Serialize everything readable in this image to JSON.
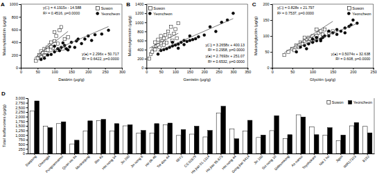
{
  "chart_data": [
    {
      "type": "scatter",
      "title": "A",
      "x_label": "Daidzin (μg/g)",
      "y_label": "Malonyldaidzin (μg/g)",
      "xlim": [
        0,
        300
      ],
      "xticks": [
        0,
        50,
        100,
        150,
        200,
        250,
        300
      ],
      "ylim": [
        0,
        1000
      ],
      "yticks": [
        0,
        200,
        400,
        600,
        800,
        1000
      ],
      "legend": "top-right",
      "series": [
        {
          "name": "Suwon",
          "color": "#ffffff",
          "marker": "square",
          "x": [
            45,
            50,
            55,
            60,
            65,
            70,
            75,
            80,
            85,
            90,
            95,
            100,
            105,
            110,
            115,
            120,
            125,
            130,
            80,
            70,
            60,
            90,
            100,
            110,
            140
          ],
          "values": [
            110,
            150,
            200,
            260,
            230,
            300,
            280,
            320,
            350,
            400,
            310,
            420,
            500,
            380,
            590,
            640,
            300,
            450,
            280,
            200,
            180,
            330,
            560,
            280,
            480
          ]
        },
        {
          "name": "Yeoncheon",
          "color": "#000000",
          "marker": "circle",
          "x": [
            60,
            70,
            80,
            90,
            100,
            110,
            120,
            130,
            140,
            150,
            160,
            170,
            180,
            190,
            200,
            210,
            220,
            240,
            260,
            100,
            115,
            125,
            145,
            135,
            165
          ],
          "values": [
            130,
            150,
            200,
            210,
            250,
            300,
            320,
            350,
            280,
            400,
            320,
            450,
            380,
            450,
            500,
            430,
            520,
            530,
            590,
            340,
            270,
            390,
            330,
            300,
            420
          ]
        },
        {
          "type": "line",
          "color": "#555555",
          "x": [
            40,
            140
          ],
          "values": [
            153,
            572
          ]
        },
        {
          "type": "line",
          "color": "#555555",
          "x": [
            50,
            260
          ],
          "values": [
            165,
            648
          ]
        }
      ],
      "annotations": [
        "y(□) = 4.1915x - 14.588",
        "R² = 0.4516, p=0.0000",
        "y(●) = 2.296x + 50.717",
        "R² = 0.6422, p=0.0000"
      ]
    },
    {
      "type": "scatter",
      "title": "B",
      "x_label": "Genistin (μg/g)",
      "y_label": "Malonylgenistin (μg/g)",
      "xlim": [
        0,
        350
      ],
      "xticks": [
        0,
        50,
        100,
        150,
        200,
        250,
        300,
        350
      ],
      "ylim": [
        0,
        1400
      ],
      "yticks": [
        0,
        200,
        400,
        600,
        800,
        1000,
        1200,
        1400
      ],
      "legend": "top-left",
      "series": [
        {
          "name": "Suwon",
          "color": "#ffffff",
          "marker": "square",
          "x": [
            10,
            15,
            20,
            25,
            30,
            35,
            40,
            45,
            50,
            55,
            60,
            65,
            70,
            75,
            80,
            85,
            90,
            95,
            100,
            105,
            40,
            60,
            30,
            110,
            50
          ],
          "values": [
            200,
            300,
            350,
            420,
            400,
            480,
            500,
            450,
            550,
            600,
            650,
            720,
            550,
            800,
            700,
            900,
            600,
            750,
            850,
            650,
            620,
            500,
            560,
            980,
            700
          ]
        },
        {
          "name": "Yeoncheon",
          "color": "#000000",
          "marker": "circle",
          "x": [
            40,
            50,
            60,
            70,
            80,
            90,
            100,
            110,
            120,
            130,
            140,
            150,
            160,
            170,
            180,
            200,
            220,
            240,
            260,
            280,
            300,
            110,
            130,
            150,
            90
          ],
          "values": [
            300,
            380,
            400,
            420,
            450,
            480,
            500,
            520,
            560,
            600,
            580,
            600,
            620,
            640,
            680,
            720,
            900,
            800,
            1000,
            1050,
            1200,
            430,
            510,
            700,
            560
          ]
        },
        {
          "type": "line",
          "color": "#555555",
          "x": [
            10,
            110
          ],
          "values": [
            433,
            759
          ]
        },
        {
          "type": "line",
          "color": "#555555",
          "x": [
            40,
            300
          ],
          "values": [
            362,
            1082
          ]
        }
      ],
      "annotations": [
        "y(□) = 3.2658x + 400.13",
        "R² = 0.2958, p=0.0000",
        "y(●) = 2.7693x + 251.07",
        "R² = 0.6532, p=0.0000"
      ]
    },
    {
      "type": "scatter",
      "title": "C",
      "x_label": "Glycitin (μg/g)",
      "y_label": "Malonylglycitin (μg/g)",
      "xlim": [
        0,
        250
      ],
      "xticks": [
        0,
        50,
        100,
        150,
        200,
        250
      ],
      "ylim": [
        0,
        200
      ],
      "yticks": [
        0,
        50,
        100,
        150,
        200
      ],
      "legend": "top-right",
      "series": [
        {
          "name": "Suwon",
          "color": "#ffffff",
          "marker": "square",
          "x": [
            30,
            40,
            50,
            55,
            60,
            70,
            75,
            80,
            85,
            90,
            95,
            100,
            105,
            110,
            115,
            120,
            125,
            130,
            140,
            65,
            80,
            100,
            150,
            90,
            110
          ],
          "values": [
            40,
            50,
            60,
            55,
            70,
            80,
            75,
            85,
            90,
            95,
            90,
            100,
            95,
            100,
            110,
            115,
            105,
            120,
            110,
            65,
            95,
            85,
            115,
            80,
            120
          ]
        },
        {
          "name": "Yeoncheon",
          "color": "#000000",
          "marker": "circle",
          "x": [
            60,
            70,
            80,
            90,
            100,
            110,
            120,
            125,
            130,
            140,
            150,
            160,
            170,
            180,
            190,
            200,
            210,
            100,
            120,
            140,
            160,
            85,
            180,
            195,
            110
          ],
          "values": [
            50,
            65,
            70,
            75,
            80,
            85,
            90,
            95,
            100,
            100,
            110,
            105,
            115,
            125,
            130,
            150,
            140,
            90,
            85,
            115,
            120,
            60,
            110,
            135,
            95
          ]
        },
        {
          "type": "line",
          "color": "#555555",
          "x": [
            30,
            150
          ],
          "values": [
            47,
            146
          ]
        },
        {
          "type": "line",
          "color": "#555555",
          "x": [
            60,
            210
          ],
          "values": [
            63,
            139
          ]
        }
      ],
      "annotations": [
        "y(□) = 0.828x + 21.797",
        "R² = 0.7537, p=0.0000",
        "y(●) = 0.5074x + 32.638",
        "R² = 0.608, p=0.0000"
      ]
    },
    {
      "type": "bar",
      "title": "D",
      "y_label": "Total isoflavones (μg/g)",
      "categories": [
        "Daepung",
        "Cheongja",
        "Pungsannamul",
        "Quan wu tia",
        "Muskasjung",
        "Jilin 43",
        "Hei nong 34",
        "Jin 200",
        "Jin nong 8",
        "He 06-48",
        "Tie dou 44",
        "08Y2",
        "CS 02879",
        "Ha jiao 01-1314",
        "Ha jiao 95-873",
        "Hei nong 44",
        "Gong jiao 9414",
        "Jin 100",
        "Sui nong 10",
        "Gideumkong",
        "Ao nanuc",
        "Toyohokare",
        "Nai 2 ho",
        "Jigori",
        "WIR17323",
        "B152"
      ],
      "ylim": [
        0,
        3000
      ],
      "yticks": [
        0,
        250,
        500,
        750,
        {
          "value": 1000,
          "label": "1,000"
        },
        {
          "value": 1250,
          "label": "1,250"
        },
        {
          "value": 1500,
          "label": "1,500"
        },
        {
          "value": 1750,
          "label": "1,750"
        },
        {
          "value": 2000,
          "label": "2,000"
        },
        {
          "value": 2250,
          "label": "2,250"
        },
        {
          "value": 2500,
          "label": "2,500"
        },
        {
          "value": 2750,
          "label": "2,750"
        },
        {
          "value": 3000,
          "label": "3,000"
        }
      ],
      "legend": "top-right",
      "series": [
        {
          "name": "Suwon",
          "color": "#ffffff",
          "values": [
            2300,
            1480,
            1620,
            520,
            1230,
            1780,
            1230,
            1500,
            1100,
            1100,
            1550,
            980,
            1050,
            900,
            2200,
            1330,
            1220,
            870,
            1240,
            800,
            2100,
            1450,
            1000,
            700,
            1500,
            1470
          ]
        },
        {
          "name": "Yeoncheon",
          "color": "#000000",
          "values": [
            2850,
            1400,
            1720,
            720,
            1770,
            1850,
            1620,
            1560,
            1250,
            1620,
            1650,
            1300,
            1480,
            1250,
            2560,
            800,
            1800,
            1000,
            2050,
            1020,
            1980,
            1020,
            1400,
            1000,
            1680,
            1120
          ]
        }
      ]
    }
  ]
}
